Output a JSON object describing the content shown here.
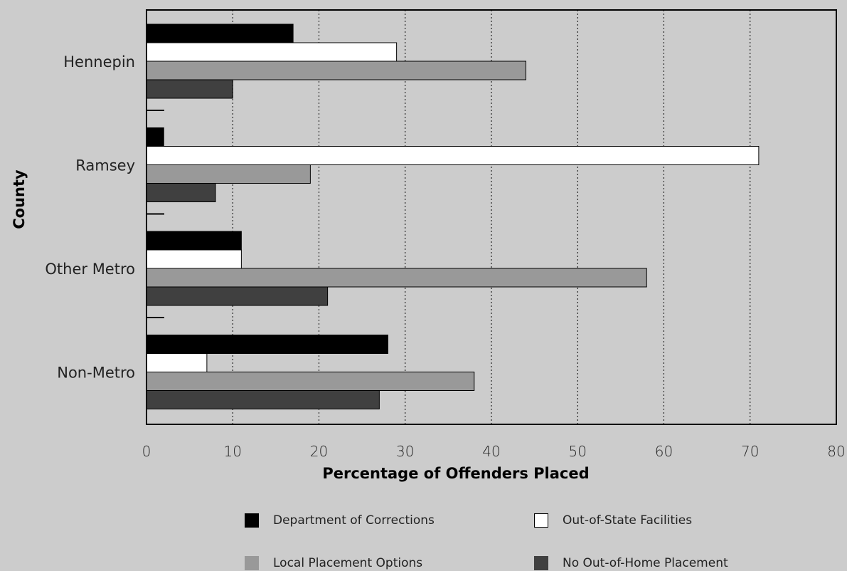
{
  "chart_data": {
    "type": "bar",
    "orientation": "horizontal",
    "categories": [
      "Hennepin",
      "Ramsey",
      "Other Metro",
      "Non-Metro"
    ],
    "series": [
      {
        "name": "Department of Corrections",
        "color": "#000000",
        "values": [
          17,
          2,
          11,
          28
        ]
      },
      {
        "name": "Out-of-State Facilities",
        "color": "#ffffff",
        "values": [
          29,
          71,
          11,
          7
        ]
      },
      {
        "name": "Local Placement Options",
        "color": "#999999",
        "values": [
          44,
          19,
          58,
          38
        ]
      },
      {
        "name": "No Out-of-Home Placement",
        "color": "#404040",
        "values": [
          10,
          8,
          21,
          27
        ]
      }
    ],
    "xlabel": "Percentage of Offenders Placed",
    "ylabel": "County",
    "xlim": [
      0,
      80
    ],
    "xticks": [
      "0",
      "10",
      "20",
      "30",
      "40",
      "50",
      "60",
      "70",
      "80"
    ],
    "grid": "vertical dotted",
    "legend_position": "bottom"
  },
  "colors": {
    "background": "#cccccc",
    "axis": "#000000"
  }
}
